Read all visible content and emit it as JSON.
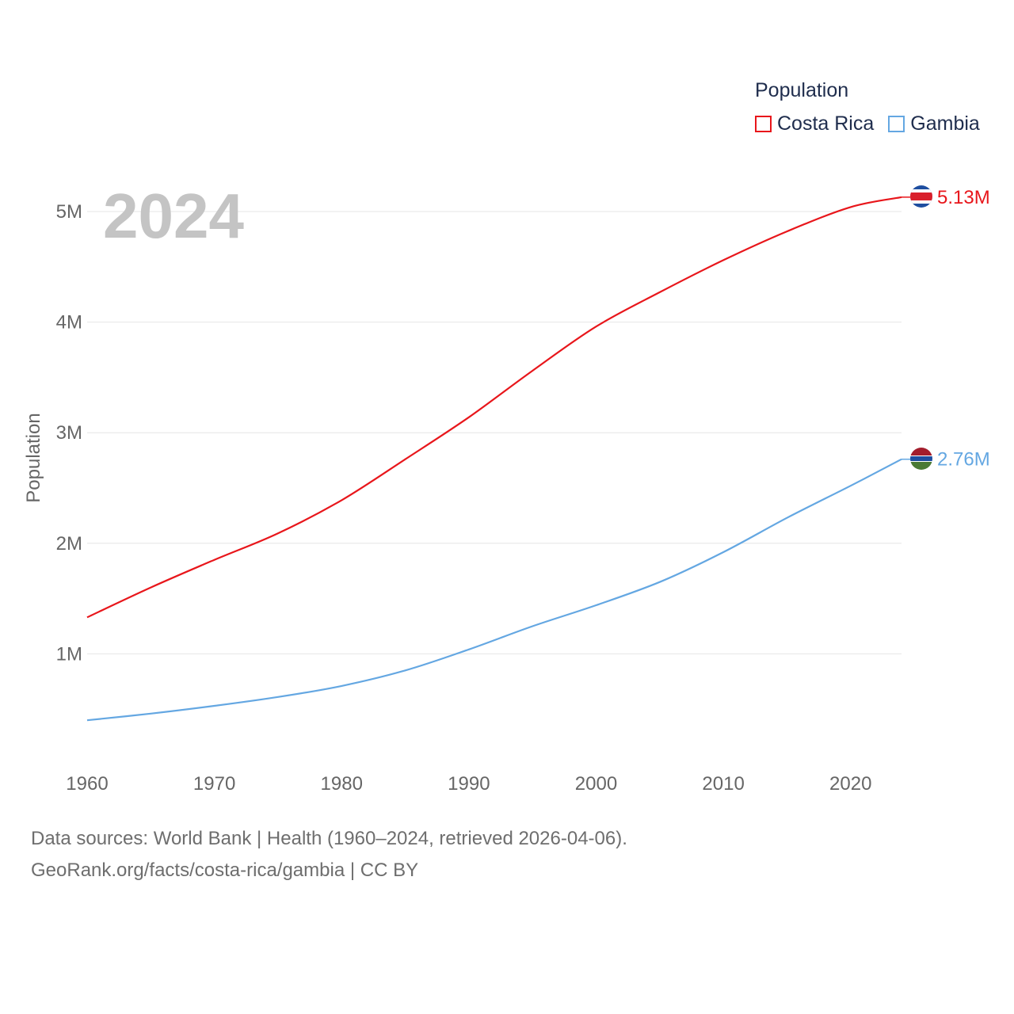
{
  "legend": {
    "title": "Population",
    "items": [
      {
        "label": "Costa Rica",
        "color": "#e8161b"
      },
      {
        "label": "Gambia",
        "color": "#64a7e2"
      }
    ]
  },
  "chart_data": {
    "type": "line",
    "title": "",
    "year_label": "2024",
    "xlabel": "",
    "ylabel": "Population",
    "xlim": [
      1960,
      2024
    ],
    "ylim": [
      0,
      5000000
    ],
    "x_ticks": [
      1960,
      1970,
      1980,
      1990,
      2000,
      2010,
      2020
    ],
    "y_ticks": [
      {
        "value": 1000000,
        "label": "1M"
      },
      {
        "value": 2000000,
        "label": "2M"
      },
      {
        "value": 3000000,
        "label": "3M"
      },
      {
        "value": 4000000,
        "label": "4M"
      },
      {
        "value": 5000000,
        "label": "5M"
      }
    ],
    "x": [
      1960,
      1965,
      1970,
      1975,
      1980,
      1985,
      1990,
      1995,
      2000,
      2005,
      2010,
      2015,
      2020,
      2024
    ],
    "series": [
      {
        "name": "Costa Rica",
        "color": "#e8161b",
        "end_label": "5.13M",
        "values": [
          1330000,
          1600000,
          1850000,
          2090000,
          2390000,
          2760000,
          3140000,
          3560000,
          3960000,
          4270000,
          4560000,
          4820000,
          5040000,
          5130000
        ]
      },
      {
        "name": "Gambia",
        "color": "#64a7e2",
        "end_label": "2.76M",
        "values": [
          400000,
          460000,
          530000,
          610000,
          710000,
          850000,
          1040000,
          1250000,
          1440000,
          1650000,
          1920000,
          2230000,
          2520000,
          2760000
        ]
      }
    ]
  },
  "footer": {
    "line1": "Data sources: World Bank | Health (1960–2024, retrieved 2026-04-06).",
    "line2": "GeoRank.org/facts/costa-rica/gambia | CC BY"
  }
}
